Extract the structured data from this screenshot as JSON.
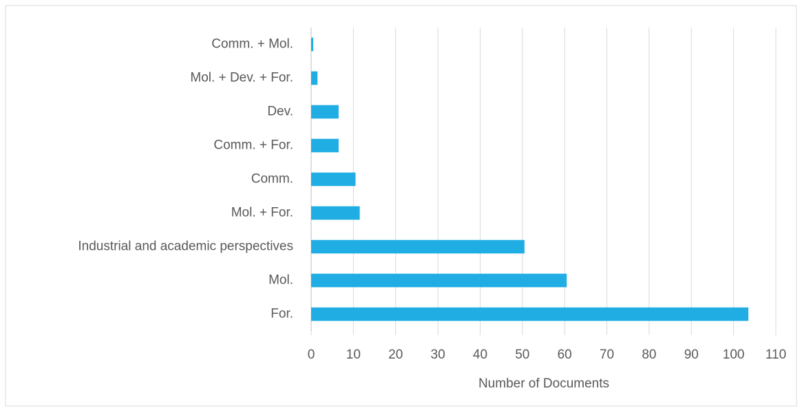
{
  "chart_data": {
    "type": "bar",
    "orientation": "horizontal",
    "xlabel": "Number of Documents",
    "categories": [
      "Comm. + Mol.",
      "Mol. + Dev. + For.",
      "Dev.",
      "Comm. + For.",
      "Comm.",
      "Mol. + For.",
      "Industrial and academic perspectives",
      "Mol.",
      "For."
    ],
    "values": [
      0.5,
      1.5,
      6.5,
      6.5,
      10.5,
      11.5,
      50.5,
      60.5,
      103.5
    ],
    "color": "#1fade4",
    "xlim": [
      0,
      110
    ],
    "xticks": [
      0,
      10,
      20,
      30,
      40,
      50,
      60,
      70,
      80,
      90,
      100,
      110
    ],
    "grid": true
  }
}
